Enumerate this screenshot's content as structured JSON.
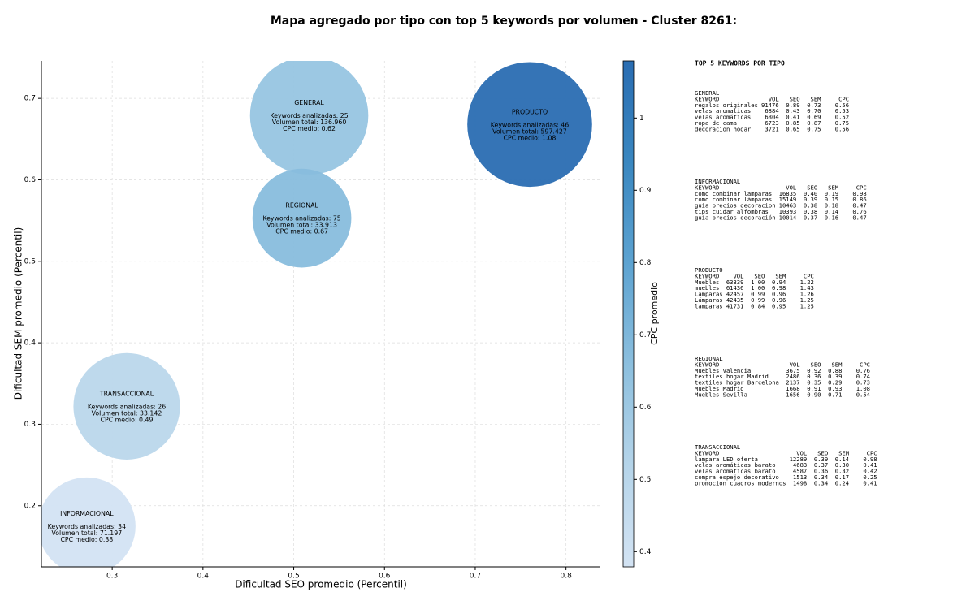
{
  "chart_data": {
    "type": "bubble",
    "title": "Mapa agregado por tipo con top 5 keywords por volumen - Cluster 8261:",
    "xlabel": "Dificultad SEO promedio (Percentil)",
    "ylabel": "Dificultad SEM promedio (Percentil)",
    "xlim": [
      0.222,
      0.837
    ],
    "ylim": [
      0.125,
      0.746
    ],
    "xticks": [
      0.3,
      0.4,
      0.5,
      0.6,
      0.7,
      0.8
    ],
    "yticks": [
      0.2,
      0.3,
      0.4,
      0.5,
      0.6,
      0.7
    ],
    "grid": true,
    "points": [
      {
        "name": "GENERAL",
        "x": 0.517,
        "y": 0.679,
        "size": 5300,
        "cpc": 0.62,
        "lines": [
          "Keywords analizadas: 25",
          "Volumen total: 136.960",
          "CPC medio: 0.62"
        ]
      },
      {
        "name": "PRODUCTO",
        "x": 0.76,
        "y": 0.668,
        "size": 5900,
        "cpc": 1.08,
        "lines": [
          "Keywords analizadas: 46",
          "Volumen total: 597.427",
          "CPC medio: 1.08"
        ]
      },
      {
        "name": "REGIONAL",
        "x": 0.509,
        "y": 0.553,
        "size": 3700,
        "cpc": 0.67,
        "lines": [
          "Keywords analizadas: 75",
          "Volumen total: 33.913",
          "CPC medio: 0.67"
        ]
      },
      {
        "name": "TRANSACCIONAL",
        "x": 0.316,
        "y": 0.322,
        "size": 4300,
        "cpc": 0.49,
        "lines": [
          "Keywords analizadas: 26",
          "Volumen total: 33.142",
          "CPC medio: 0.49"
        ]
      },
      {
        "name": "INFORMACIONAL",
        "x": 0.272,
        "y": 0.175,
        "size": 3600,
        "cpc": 0.38,
        "lines": [
          "Keywords analizadas: 34",
          "Volumen total: 71.197",
          "CPC medio: 0.38"
        ]
      }
    ],
    "colorbar": {
      "label": "CPC promedio",
      "lim": [
        0.379,
        1.079
      ],
      "ticks": [
        0.4,
        0.5,
        0.6,
        0.7,
        0.8,
        0.9,
        1.0
      ],
      "colors": [
        "#d3e3f3",
        "#b5d4e9",
        "#8cbfde",
        "#5da3d1",
        "#3a87c0",
        "#2a6db2"
      ]
    },
    "panel": {
      "title": "TOP 5 KEYWORDS POR TIPO",
      "columns": [
        "KEYWORD",
        "VOL",
        "SEO",
        "SEM",
        "CPC"
      ],
      "groups": [
        {
          "name": "GENERAL",
          "rows": [
            [
              "regalos originales",
              "91476",
              "0.89",
              "0.73",
              "0.56"
            ],
            [
              "velas aromaticas",
              "6884",
              "0.43",
              "0.70",
              "0.53"
            ],
            [
              "velas aromáticas",
              "6804",
              "0.41",
              "0.69",
              "0.52"
            ],
            [
              "ropa de cama",
              "6723",
              "0.85",
              "0.87",
              "0.75"
            ],
            [
              "decoracion hogar",
              "3721",
              "0.65",
              "0.75",
              "0.56"
            ]
          ]
        },
        {
          "name": "INFORMACIONAL",
          "rows": [
            [
              "como combinar lamparas",
              "16835",
              "0.40",
              "0.19",
              "0.98"
            ],
            [
              "cómo combinar lámparas",
              "15149",
              "0.39",
              "0.15",
              "0.86"
            ],
            [
              "guia precios decoracion",
              "10463",
              "0.38",
              "0.18",
              "0.47"
            ],
            [
              "tips cuidar alfombras",
              "10393",
              "0.38",
              "0.14",
              "0.76"
            ],
            [
              "guía precios decoración",
              "10014",
              "0.37",
              "0.16",
              "0.47"
            ]
          ]
        },
        {
          "name": "PRODUCTO",
          "rows": [
            [
              "Muebles",
              "63339",
              "1.00",
              "0.94",
              "1.22"
            ],
            [
              "muebles",
              "61436",
              "1.00",
              "0.98",
              "1.43"
            ],
            [
              "Lamparas",
              "42457",
              "0.99",
              "0.96",
              "1.26"
            ],
            [
              "Lámparas",
              "42435",
              "0.99",
              "0.96",
              "1.25"
            ],
            [
              "lamparas",
              "41731",
              "0.84",
              "0.95",
              "1.25"
            ]
          ]
        },
        {
          "name": "REGIONAL",
          "rows": [
            [
              "Muebles Valencia",
              "3675",
              "0.92",
              "0.88",
              "0.76"
            ],
            [
              "textiles hogar Madrid",
              "2486",
              "0.36",
              "0.39",
              "0.74"
            ],
            [
              "textiles hogar Barcelona",
              "2137",
              "0.35",
              "0.29",
              "0.73"
            ],
            [
              "Muebles Madrid",
              "1668",
              "0.91",
              "0.93",
              "1.08"
            ],
            [
              "Muebles Sevilla",
              "1656",
              "0.90",
              "0.71",
              "0.54"
            ]
          ]
        },
        {
          "name": "TRANSACCIONAL",
          "rows": [
            [
              "lampara LED oferta",
              "12289",
              "0.39",
              "0.14",
              "0.98"
            ],
            [
              "velas aromáticas barato",
              "4683",
              "0.37",
              "0.30",
              "0.41"
            ],
            [
              "velas aromaticas barato",
              "4587",
              "0.36",
              "0.32",
              "0.42"
            ],
            [
              "compra espejo decorativo",
              "1513",
              "0.34",
              "0.17",
              "0.25"
            ],
            [
              "promocion cuadros modernos",
              "1498",
              "0.34",
              "0.24",
              "0.41"
            ]
          ]
        }
      ]
    }
  }
}
